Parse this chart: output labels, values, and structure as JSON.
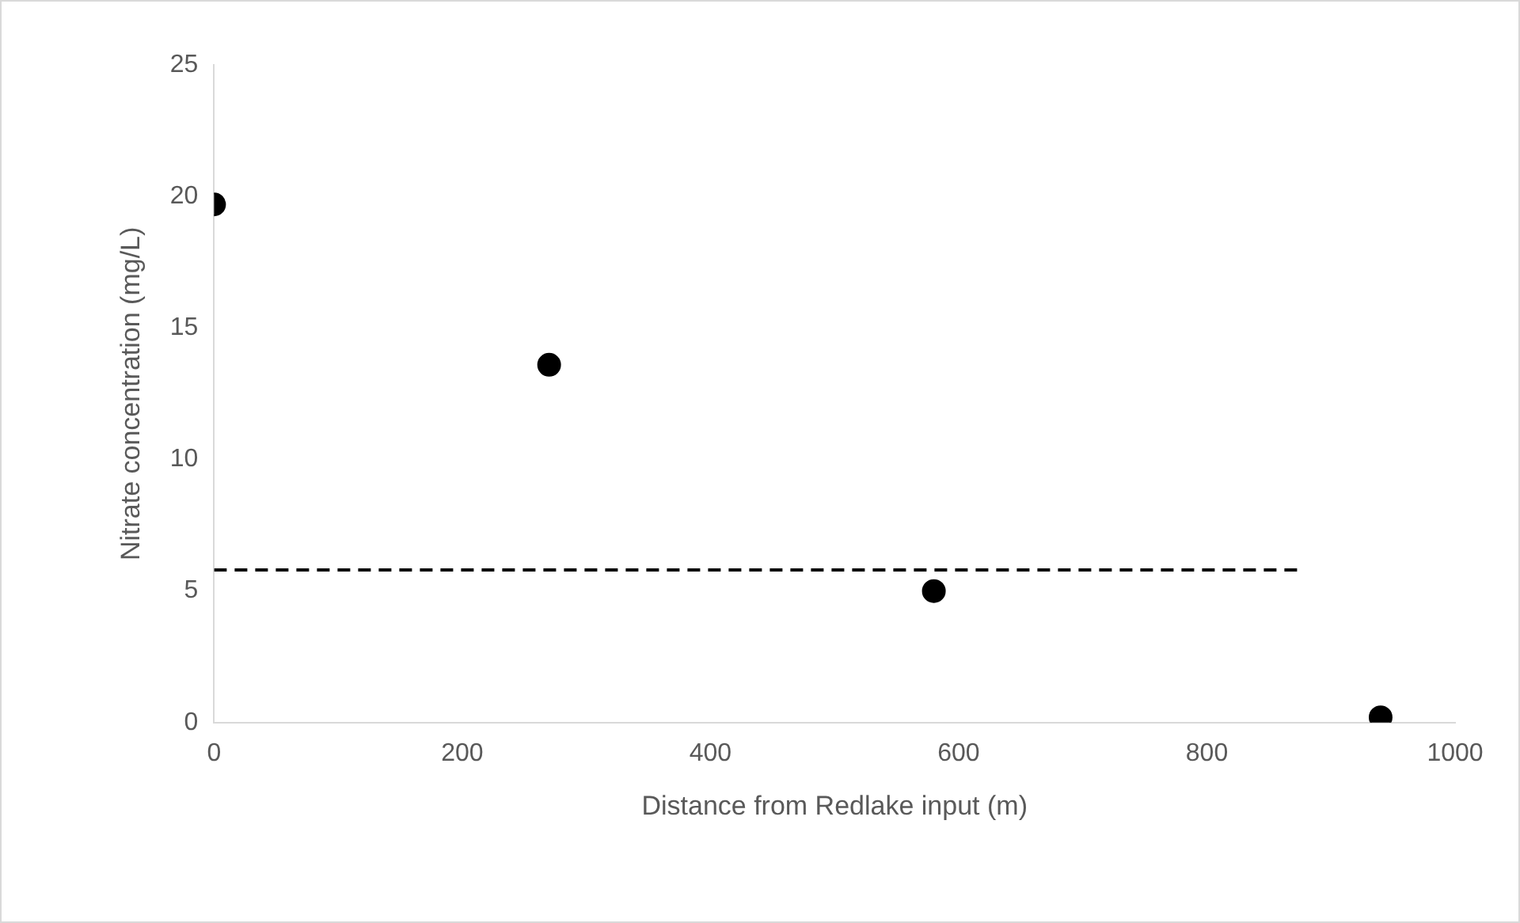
{
  "chart_data": {
    "type": "scatter",
    "xlabel": "Distance from Redlake input (m)",
    "ylabel": "Nitrate concentration (mg/L)",
    "x": [
      0,
      270,
      580,
      940
    ],
    "values": [
      19.7,
      13.6,
      5.0,
      0.2
    ],
    "color": "#000000",
    "marker": "circle",
    "series": [
      {
        "type": "line",
        "x": [
          0,
          875
        ],
        "values": [
          5.8,
          5.8
        ],
        "color": "#000000",
        "line_style": "dashed",
        "marker": "none"
      }
    ],
    "xlim": [
      0,
      1000
    ],
    "xticks": [
      0,
      200,
      400,
      600,
      800,
      1000
    ],
    "ylim": [
      0,
      25
    ],
    "yticks": [
      0,
      5,
      10,
      15,
      20,
      25
    ],
    "grid": false,
    "legend": false
  }
}
